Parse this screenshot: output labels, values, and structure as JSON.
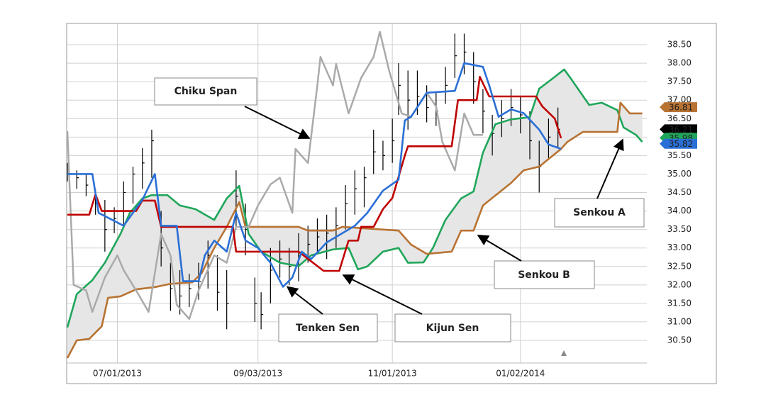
{
  "chart_data": {
    "type": "ichimoku",
    "xlim": [
      0,
      185
    ],
    "xticks": [
      {
        "value": 16,
        "label": "07/01/2013"
      },
      {
        "value": 61,
        "label": "09/03/2013"
      },
      {
        "value": 104,
        "label": "11/01/2013"
      },
      {
        "value": 145,
        "label": "01/02/2014"
      }
    ],
    "ylim": [
      29.886,
      39.076
    ],
    "yticks": [
      {
        "value": 30.5,
        "label": "30.50"
      },
      {
        "value": 31,
        "label": "31.00"
      },
      {
        "value": 31.5,
        "label": "31.50"
      },
      {
        "value": 32,
        "label": "32.00"
      },
      {
        "value": 32.5,
        "label": "32.50"
      },
      {
        "value": 33,
        "label": "33.00"
      },
      {
        "value": 33.5,
        "label": "33.50"
      },
      {
        "value": 34,
        "label": "34.00"
      },
      {
        "value": 34.5,
        "label": "34.50"
      },
      {
        "value": 35,
        "label": "35.00"
      },
      {
        "value": 35.5,
        "label": "35.50"
      },
      {
        "value": 36,
        "label": "36.00"
      },
      {
        "value": 36.5,
        "label": "36.50"
      },
      {
        "value": 37,
        "label": "37.00"
      },
      {
        "value": 37.5,
        "label": "37.50"
      },
      {
        "value": 38,
        "label": "38.00"
      },
      {
        "value": 38.5,
        "label": "38.50"
      }
    ],
    "grid": true,
    "price": {
      "color": "#000000",
      "x": [
        0,
        3,
        6,
        9,
        12,
        15,
        18,
        21,
        24,
        27,
        30,
        33,
        36,
        39,
        42,
        45,
        48,
        51,
        54,
        57,
        60,
        62,
        65,
        68,
        71,
        74,
        77,
        80,
        83,
        86,
        89,
        92,
        95,
        98,
        101,
        104,
        106,
        109,
        112,
        115,
        118,
        121,
        124,
        127,
        130,
        133,
        136,
        139,
        142,
        145,
        148,
        151,
        154,
        157
      ],
      "high": [
        35.3,
        35.1,
        35.0,
        34.6,
        34.3,
        34.1,
        34.8,
        35.2,
        35.7,
        36.2,
        34.0,
        32.6,
        32.4,
        32.3,
        32.6,
        33.2,
        32.8,
        32.4,
        35.1,
        34.2,
        32.2,
        31.8,
        33.0,
        33.2,
        33.0,
        33.4,
        33.6,
        33.8,
        33.9,
        34.1,
        34.7,
        35.1,
        35.2,
        36.2,
        35.9,
        36.5,
        38.0,
        37.8,
        37.8,
        37.4,
        37.2,
        37.9,
        38.8,
        38.8,
        38.3,
        37.3,
        36.6,
        37.0,
        37.3,
        37.1,
        36.7,
        35.9,
        36.5,
        36.8
      ],
      "low": [
        34.8,
        34.6,
        34.4,
        33.9,
        32.9,
        33.4,
        33.6,
        34.2,
        34.6,
        34.9,
        32.5,
        31.3,
        31.2,
        31.4,
        31.6,
        31.9,
        31.3,
        30.8,
        33.5,
        32.8,
        31.0,
        30.8,
        31.5,
        32.2,
        32.0,
        32.1,
        32.6,
        32.9,
        32.7,
        33.0,
        33.5,
        33.9,
        34.1,
        35.0,
        35.1,
        35.3,
        36.6,
        36.2,
        36.6,
        36.4,
        36.3,
        36.9,
        37.6,
        37.7,
        36.9,
        36.1,
        35.5,
        36.0,
        36.3,
        36.1,
        35.4,
        34.5,
        35.4,
        35.7
      ],
      "close": [
        35.0,
        34.9,
        34.7,
        34.2,
        33.5,
        33.8,
        34.5,
        35.0,
        35.3,
        35.9,
        33.0,
        31.9,
        31.7,
        31.9,
        32.1,
        32.8,
        31.8,
        31.5,
        34.4,
        33.5,
        31.5,
        31.2,
        32.4,
        32.7,
        32.5,
        32.8,
        33.1,
        33.3,
        33.4,
        33.6,
        34.2,
        34.6,
        34.9,
        35.6,
        35.5,
        35.9,
        37.4,
        37.0,
        37.1,
        36.8,
        36.7,
        37.4,
        38.2,
        38.3,
        37.5,
        36.7,
        36.1,
        36.5,
        36.8,
        36.6,
        35.9,
        35.2,
        36.0,
        36.21
      ]
    },
    "series": [
      {
        "name": "Senkou A",
        "color": "#1fa65a",
        "x": [
          0,
          3,
          8,
          12,
          17,
          20,
          24,
          27,
          32,
          36,
          41,
          47,
          51,
          55,
          58,
          62,
          68,
          74,
          78,
          85,
          90,
          93,
          96,
          101,
          106,
          109,
          114,
          117,
          121,
          126,
          130,
          133,
          137,
          142,
          148,
          151,
          154,
          159,
          161,
          167,
          171,
          176,
          178,
          182,
          184
        ],
        "values": [
          30.85,
          31.75,
          32.13,
          32.6,
          33.38,
          33.95,
          34.34,
          34.43,
          34.43,
          34.15,
          34.05,
          33.76,
          34.34,
          34.68,
          33.38,
          32.9,
          32.6,
          32.51,
          32.8,
          32.96,
          33.0,
          32.42,
          32.5,
          32.9,
          33.0,
          32.6,
          32.61,
          33.0,
          33.76,
          34.34,
          34.53,
          35.58,
          36.35,
          36.48,
          36.54,
          37.31,
          37.5,
          37.83,
          37.6,
          36.87,
          36.93,
          36.73,
          36.26,
          36.06,
          35.87
        ]
      },
      {
        "name": "Senkou B",
        "color": "#b87333",
        "x": [
          0,
          3,
          7,
          11,
          13,
          17,
          22,
          28,
          33,
          40,
          43,
          47,
          51,
          55,
          57,
          74,
          77,
          85,
          88,
          106,
          110,
          115,
          123,
          126,
          130,
          133,
          142,
          146,
          151,
          158,
          160,
          165,
          176,
          177,
          180,
          184
        ],
        "values": [
          30.02,
          30.5,
          30.54,
          30.88,
          31.65,
          31.69,
          31.88,
          31.94,
          32.03,
          32.07,
          32.32,
          33.0,
          33.57,
          34.24,
          33.57,
          33.57,
          33.47,
          33.47,
          33.57,
          33.47,
          33.09,
          32.84,
          32.9,
          33.47,
          33.47,
          34.15,
          34.76,
          35.1,
          35.2,
          35.68,
          35.87,
          36.14,
          36.14,
          36.93,
          36.64,
          36.64
        ]
      },
      {
        "name": "Chiku Span",
        "color": "#aaaaaa",
        "x": [
          0,
          2,
          6,
          8,
          12,
          16,
          18,
          22,
          26,
          30,
          33,
          35,
          39,
          42,
          47,
          51,
          54,
          58,
          61,
          65,
          68,
          72,
          73,
          77,
          80,
          81,
          85,
          86,
          90,
          94,
          98,
          100,
          103,
          107,
          110,
          115,
          118,
          120,
          124,
          127,
          130,
          133
        ],
        "values": [
          36.16,
          32.0,
          31.85,
          31.27,
          32.2,
          32.8,
          32.4,
          31.85,
          31.27,
          33.38,
          32.8,
          31.46,
          31.08,
          31.85,
          32.8,
          32.6,
          33.57,
          33.57,
          34.15,
          34.72,
          34.9,
          33.95,
          35.68,
          35.3,
          37.4,
          38.17,
          37.4,
          37.98,
          36.64,
          37.6,
          38.17,
          38.85,
          37.79,
          36.64,
          36.55,
          37.2,
          36.83,
          35.87,
          35.1,
          36.64,
          36.06,
          36.06
        ]
      },
      {
        "name": "Kijun Sen",
        "color": "#c00000",
        "x": [
          0,
          7,
          9,
          11,
          22,
          24,
          28,
          30,
          53,
          54,
          74,
          82,
          87,
          90,
          93,
          94,
          98,
          101,
          104,
          108,
          109,
          123,
          125,
          131,
          132,
          135,
          150,
          152,
          156,
          158
        ],
        "values": [
          33.9,
          33.9,
          34.45,
          34.0,
          34.0,
          34.28,
          34.28,
          33.57,
          33.57,
          32.9,
          32.9,
          32.38,
          32.38,
          33.2,
          33.2,
          33.57,
          33.57,
          34.05,
          34.35,
          35.5,
          35.75,
          35.75,
          37.0,
          37.0,
          37.63,
          37.1,
          37.1,
          36.83,
          36.5,
          35.97
        ]
      },
      {
        "name": "Tenken Sen",
        "color": "#2a6fd6",
        "x": [
          0,
          8,
          10,
          18,
          24,
          28,
          30,
          35,
          37,
          42,
          44,
          47,
          51,
          54,
          57,
          61,
          65,
          69,
          72,
          75,
          78,
          83,
          87,
          92,
          96,
          101,
          106,
          108,
          110,
          115,
          124,
          127,
          133,
          135,
          138,
          142,
          146,
          151,
          154,
          158
        ],
        "values": [
          35.0,
          35.0,
          33.95,
          33.6,
          34.3,
          35.0,
          33.6,
          33.6,
          32.1,
          32.1,
          32.8,
          33.2,
          32.9,
          33.95,
          33.2,
          33.0,
          32.6,
          31.95,
          32.2,
          32.9,
          32.7,
          33.15,
          33.35,
          33.6,
          33.95,
          34.55,
          34.85,
          36.45,
          36.55,
          37.2,
          37.25,
          38.0,
          37.9,
          37.4,
          36.55,
          36.75,
          36.65,
          36.2,
          35.8,
          35.68
        ]
      }
    ],
    "last_values": [
      {
        "value": 36.81,
        "color": "#b87333"
      },
      {
        "value": 36.21,
        "color": "#000000"
      },
      {
        "value": 35.98,
        "color": "#1fa65a"
      },
      {
        "value": 35.82,
        "color": "#2a6fd6"
      }
    ]
  }
}
